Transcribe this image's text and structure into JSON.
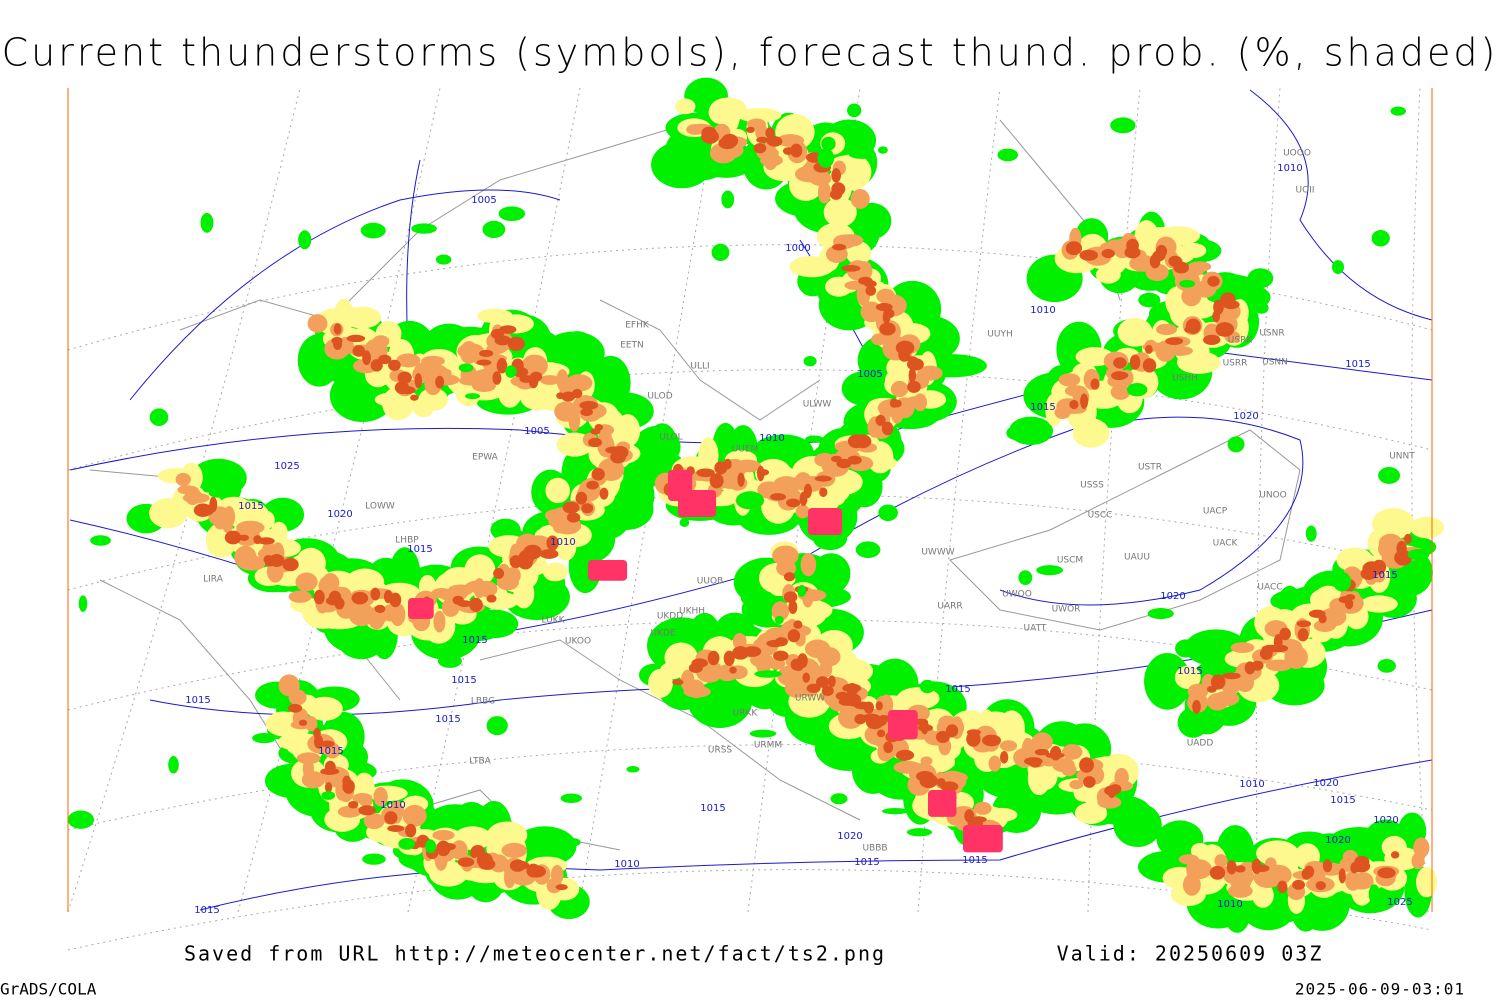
{
  "title": "Current thunderstorms (symbols), forecast thund. prob. (%, shaded)",
  "footer": {
    "source": "Saved from URL http://meteocenter.net/fact/ts2.png",
    "valid": "Valid: 20250609 03Z",
    "software": "GrADS/COLA",
    "timestamp": "2025-06-09-03:01"
  },
  "map": {
    "isobar_labels": [
      "1005",
      "1000",
      "1005",
      "1010",
      "1005",
      "1010",
      "1015",
      "1020",
      "1015",
      "1010",
      "1025",
      "1015",
      "1020",
      "1015",
      "1010",
      "1015",
      "1015",
      "1015",
      "1015",
      "1015",
      "1010",
      "1015",
      "1020",
      "1015",
      "1010",
      "1015",
      "1020",
      "1015",
      "1015",
      "1015",
      "1015",
      "1010",
      "1020",
      "1015",
      "1020",
      "1020",
      "1010",
      "1025"
    ],
    "station_labels": [
      "UOOO",
      "UOII",
      "USRK",
      "USNR",
      "USRR",
      "USNN",
      "USHH",
      "USTR",
      "USSS",
      "USCC",
      "UACP",
      "UNOO",
      "UACK",
      "USCM",
      "UAUU",
      "UWOO",
      "UWOR",
      "UATT",
      "UACC",
      "UNNT",
      "UADD",
      "URWW",
      "URKK",
      "URSS",
      "URMM",
      "UBBB",
      "EFHK",
      "EETN",
      "ULLI",
      "ULOD",
      "ULWW",
      "ULOL",
      "UUEM",
      "UUOB",
      "UKHH",
      "UKDD",
      "UKDE",
      "UKOO",
      "LUKK",
      "LBBG",
      "LTBA",
      "LIRA",
      "LOWW",
      "LHBP",
      "EPWA",
      "UWWW",
      "UARR",
      "UUYH"
    ]
  }
}
